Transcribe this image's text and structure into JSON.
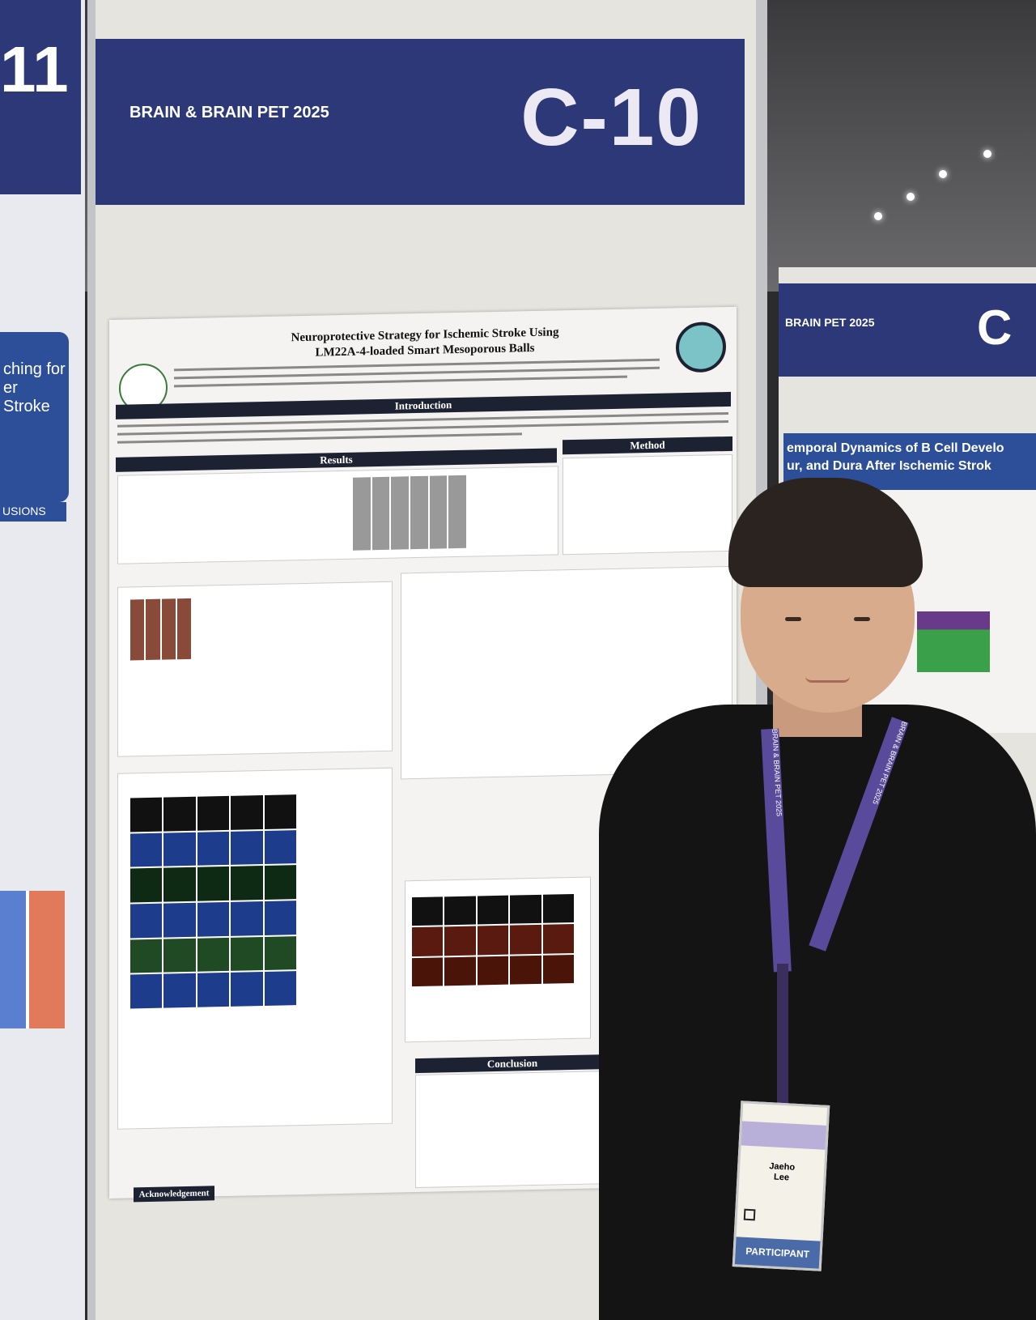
{
  "scene": "poster-session",
  "main_booth": {
    "booth_number": "C-10",
    "event_logo_text": "BRAIN & BRAIN PET 2025"
  },
  "poster": {
    "title_line1": "Neuroprotective Strategy for Ischemic Stroke Using",
    "title_line2": "LM22A-4-loaded Smart Mesoporous Balls",
    "sections": {
      "introduction": "Introduction",
      "results": "Results",
      "method": "Method",
      "conclusion": "Conclusion",
      "acknowledgement": "Acknowledgement"
    }
  },
  "right_booth": {
    "event_logo_text": "BRAIN PET 2025",
    "booth_number_partial": "C",
    "poster_title_line1": "emporal Dynamics of B Cell Develo",
    "poster_title_line2": "ur, and Dura After Ischemic Strok"
  },
  "left_booth": {
    "booth_number_partial": "11",
    "title_line1": "ching for",
    "title_line2": "er Stroke",
    "section": "USIONS"
  },
  "person": {
    "lanyard_text": "BRAIN & BRAIN PET 2025",
    "badge_name_first": "Jaeho",
    "badge_name_last": "Lee",
    "badge_role": "PARTICIPANT"
  },
  "colors": {
    "header_blue": "#2d3878",
    "lanyard": "#5a4a9c",
    "badge_footer": "#4a6aa8"
  }
}
